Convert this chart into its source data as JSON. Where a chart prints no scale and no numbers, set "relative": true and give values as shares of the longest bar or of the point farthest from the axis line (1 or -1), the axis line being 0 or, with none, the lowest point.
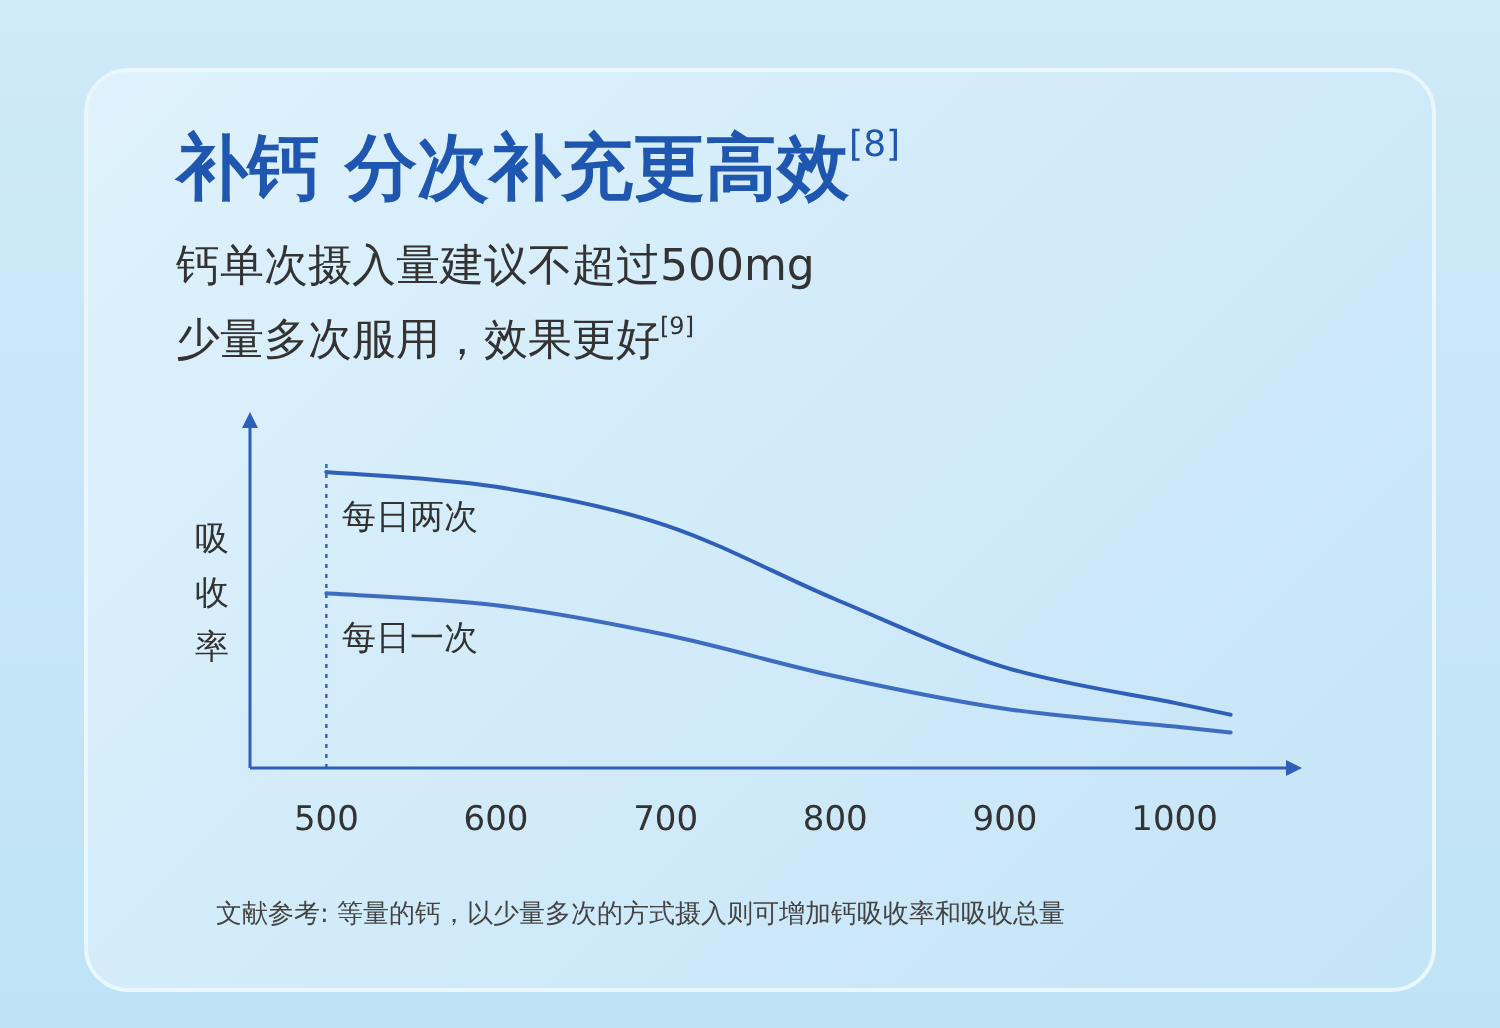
{
  "chart_data": {
    "type": "line",
    "title": "补钙 分次补充更高效$^{[8]}$",
    "subtitle": "钙单次摄入量建议不超过500mg\n少量多次服用，效果更好$^{[9]}$",
    "ylabel": "吸收率",
    "relative": true,
    "x": [
      500,
      600,
      700,
      800,
      900,
      1000,
      1033
    ],
    "series": [
      {
        "name": "每日两次",
        "color": "#2f5fb8",
        "values": [
          1,
          0.95,
          0.82,
          0.57,
          0.34,
          0.22,
          0.18
        ]
      },
      {
        "name": "每日一次",
        "color": "#3d6cc0",
        "values": [
          0.59,
          0.55,
          0.45,
          0.31,
          0.2,
          0.14,
          0.12
        ]
      }
    ],
    "xlim": [
      455,
      1068
    ],
    "xticks": [
      500,
      600,
      700,
      800,
      900,
      1000
    ],
    "ref_lines": [
      {
        "axis": "x",
        "value": 500,
        "color": "#2f5fb8",
        "line_style": "dotted"
      }
    ],
    "annotations": [
      "文献参考: 等量的钙，以少量多次的方式摄入则可增加钙吸收率和吸收总量"
    ]
  }
}
